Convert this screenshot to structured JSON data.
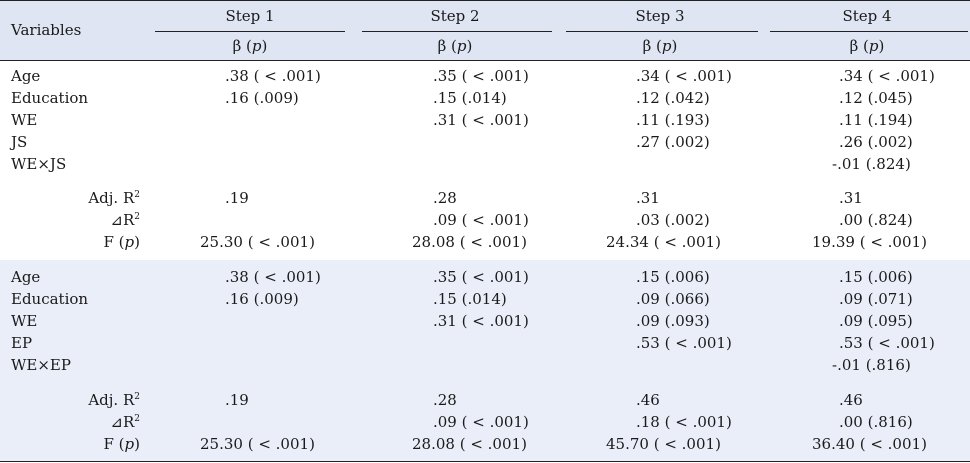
{
  "header": {
    "variables_label": "Variables",
    "steps": [
      "Step 1",
      "Step 2",
      "Step 3",
      "Step 4"
    ],
    "coef_label": "β",
    "coef_p": "p"
  },
  "section1": {
    "rows": [
      {
        "label": "Age",
        "values": [
          ".38 ( < .001)",
          ".35 ( < .001)",
          ".34 ( < .001)",
          ".34 ( < .001)"
        ]
      },
      {
        "label": "Education",
        "values": [
          ".16 (.009)",
          ".15 (.014)",
          ".12 (.042)",
          ".12 (.045)"
        ]
      },
      {
        "label": "WE",
        "values": [
          "",
          ".31 ( < .001)",
          ".11 (.193)",
          ".11 (.194)"
        ]
      },
      {
        "label": "JS",
        "values": [
          "",
          "",
          ".27 (.002)",
          ".26 (.002)"
        ]
      },
      {
        "label": "WE×JS",
        "values": [
          "",
          "",
          "",
          "-.01 (.824)"
        ]
      }
    ],
    "stats": {
      "adj_r2": [
        ".19",
        ".28",
        ".31",
        ".31"
      ],
      "delta_r2": [
        "",
        ".09 ( < .001)",
        ".03 (.002)",
        ".00 (.824)"
      ],
      "f": [
        "25.30 ( < .001)",
        "28.08 ( < .001)",
        "24.34 ( < .001)",
        "19.39 ( < .001)"
      ]
    }
  },
  "section2": {
    "rows": [
      {
        "label": "Age",
        "values": [
          ".38 ( < .001)",
          ".35 ( < .001)",
          ".15 (.006)",
          ".15 (.006)"
        ]
      },
      {
        "label": "Education",
        "values": [
          ".16 (.009)",
          ".15 (.014)",
          ".09 (.066)",
          ".09 (.071)"
        ]
      },
      {
        "label": "WE",
        "values": [
          "",
          ".31 ( < .001)",
          ".09 (.093)",
          ".09 (.095)"
        ]
      },
      {
        "label": "EP",
        "values": [
          "",
          "",
          ".53 ( < .001)",
          ".53 ( < .001)"
        ]
      },
      {
        "label": "WE×EP",
        "values": [
          "",
          "",
          "",
          "-.01 (.816)"
        ]
      }
    ],
    "stats": {
      "adj_r2": [
        ".19",
        ".28",
        ".46",
        ".46"
      ],
      "delta_r2": [
        "",
        ".09 ( < .001)",
        ".18 ( < .001)",
        ".00 (.816)"
      ],
      "f": [
        "25.30 ( < .001)",
        "28.08 ( < .001)",
        "45.70 ( < .001)",
        "36.40 ( < .001)"
      ]
    }
  },
  "stat_labels": {
    "adj": "Adj. R",
    "delta": "⊿R",
    "sup": "2",
    "f": "F",
    "p": "p"
  }
}
